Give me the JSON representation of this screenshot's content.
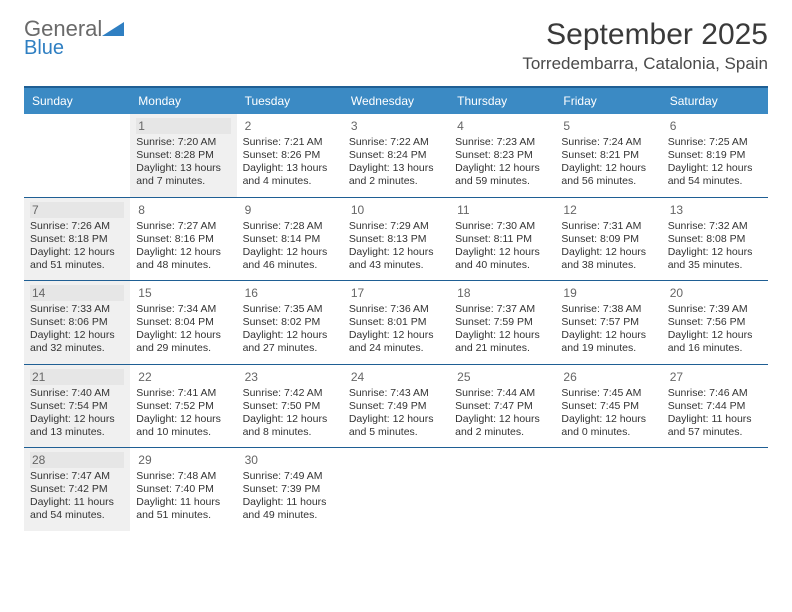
{
  "logo": {
    "word1": "General",
    "word2": "Blue",
    "text_color": "#6a6a6a",
    "accent_color": "#2f7fc2"
  },
  "title": "September 2025",
  "location": "Torredembarra, Catalonia, Spain",
  "header_bar_color": "#3b8ac4",
  "border_color": "#1f5f94",
  "shade_color": "#f0f0f0",
  "background_color": "#ffffff",
  "text_color": "#333333",
  "fonts": {
    "title_pt": 30,
    "location_pt": 17,
    "dayname_pt": 12,
    "daynum_pt": 12,
    "body_pt": 10.5
  },
  "dayNames": [
    "Sunday",
    "Monday",
    "Tuesday",
    "Wednesday",
    "Thursday",
    "Friday",
    "Saturday"
  ],
  "weeks": [
    [
      {
        "day": "",
        "shade": false,
        "sunrise": "",
        "sunset": "",
        "daylight": ""
      },
      {
        "day": "1",
        "shade": true,
        "sunrise": "Sunrise: 7:20 AM",
        "sunset": "Sunset: 8:28 PM",
        "daylight": "Daylight: 13 hours and 7 minutes."
      },
      {
        "day": "2",
        "shade": false,
        "sunrise": "Sunrise: 7:21 AM",
        "sunset": "Sunset: 8:26 PM",
        "daylight": "Daylight: 13 hours and 4 minutes."
      },
      {
        "day": "3",
        "shade": false,
        "sunrise": "Sunrise: 7:22 AM",
        "sunset": "Sunset: 8:24 PM",
        "daylight": "Daylight: 13 hours and 2 minutes."
      },
      {
        "day": "4",
        "shade": false,
        "sunrise": "Sunrise: 7:23 AM",
        "sunset": "Sunset: 8:23 PM",
        "daylight": "Daylight: 12 hours and 59 minutes."
      },
      {
        "day": "5",
        "shade": false,
        "sunrise": "Sunrise: 7:24 AM",
        "sunset": "Sunset: 8:21 PM",
        "daylight": "Daylight: 12 hours and 56 minutes."
      },
      {
        "day": "6",
        "shade": false,
        "sunrise": "Sunrise: 7:25 AM",
        "sunset": "Sunset: 8:19 PM",
        "daylight": "Daylight: 12 hours and 54 minutes."
      }
    ],
    [
      {
        "day": "7",
        "shade": true,
        "sunrise": "Sunrise: 7:26 AM",
        "sunset": "Sunset: 8:18 PM",
        "daylight": "Daylight: 12 hours and 51 minutes."
      },
      {
        "day": "8",
        "shade": false,
        "sunrise": "Sunrise: 7:27 AM",
        "sunset": "Sunset: 8:16 PM",
        "daylight": "Daylight: 12 hours and 48 minutes."
      },
      {
        "day": "9",
        "shade": false,
        "sunrise": "Sunrise: 7:28 AM",
        "sunset": "Sunset: 8:14 PM",
        "daylight": "Daylight: 12 hours and 46 minutes."
      },
      {
        "day": "10",
        "shade": false,
        "sunrise": "Sunrise: 7:29 AM",
        "sunset": "Sunset: 8:13 PM",
        "daylight": "Daylight: 12 hours and 43 minutes."
      },
      {
        "day": "11",
        "shade": false,
        "sunrise": "Sunrise: 7:30 AM",
        "sunset": "Sunset: 8:11 PM",
        "daylight": "Daylight: 12 hours and 40 minutes."
      },
      {
        "day": "12",
        "shade": false,
        "sunrise": "Sunrise: 7:31 AM",
        "sunset": "Sunset: 8:09 PM",
        "daylight": "Daylight: 12 hours and 38 minutes."
      },
      {
        "day": "13",
        "shade": false,
        "sunrise": "Sunrise: 7:32 AM",
        "sunset": "Sunset: 8:08 PM",
        "daylight": "Daylight: 12 hours and 35 minutes."
      }
    ],
    [
      {
        "day": "14",
        "shade": true,
        "sunrise": "Sunrise: 7:33 AM",
        "sunset": "Sunset: 8:06 PM",
        "daylight": "Daylight: 12 hours and 32 minutes."
      },
      {
        "day": "15",
        "shade": false,
        "sunrise": "Sunrise: 7:34 AM",
        "sunset": "Sunset: 8:04 PM",
        "daylight": "Daylight: 12 hours and 29 minutes."
      },
      {
        "day": "16",
        "shade": false,
        "sunrise": "Sunrise: 7:35 AM",
        "sunset": "Sunset: 8:02 PM",
        "daylight": "Daylight: 12 hours and 27 minutes."
      },
      {
        "day": "17",
        "shade": false,
        "sunrise": "Sunrise: 7:36 AM",
        "sunset": "Sunset: 8:01 PM",
        "daylight": "Daylight: 12 hours and 24 minutes."
      },
      {
        "day": "18",
        "shade": false,
        "sunrise": "Sunrise: 7:37 AM",
        "sunset": "Sunset: 7:59 PM",
        "daylight": "Daylight: 12 hours and 21 minutes."
      },
      {
        "day": "19",
        "shade": false,
        "sunrise": "Sunrise: 7:38 AM",
        "sunset": "Sunset: 7:57 PM",
        "daylight": "Daylight: 12 hours and 19 minutes."
      },
      {
        "day": "20",
        "shade": false,
        "sunrise": "Sunrise: 7:39 AM",
        "sunset": "Sunset: 7:56 PM",
        "daylight": "Daylight: 12 hours and 16 minutes."
      }
    ],
    [
      {
        "day": "21",
        "shade": true,
        "sunrise": "Sunrise: 7:40 AM",
        "sunset": "Sunset: 7:54 PM",
        "daylight": "Daylight: 12 hours and 13 minutes."
      },
      {
        "day": "22",
        "shade": false,
        "sunrise": "Sunrise: 7:41 AM",
        "sunset": "Sunset: 7:52 PM",
        "daylight": "Daylight: 12 hours and 10 minutes."
      },
      {
        "day": "23",
        "shade": false,
        "sunrise": "Sunrise: 7:42 AM",
        "sunset": "Sunset: 7:50 PM",
        "daylight": "Daylight: 12 hours and 8 minutes."
      },
      {
        "day": "24",
        "shade": false,
        "sunrise": "Sunrise: 7:43 AM",
        "sunset": "Sunset: 7:49 PM",
        "daylight": "Daylight: 12 hours and 5 minutes."
      },
      {
        "day": "25",
        "shade": false,
        "sunrise": "Sunrise: 7:44 AM",
        "sunset": "Sunset: 7:47 PM",
        "daylight": "Daylight: 12 hours and 2 minutes."
      },
      {
        "day": "26",
        "shade": false,
        "sunrise": "Sunrise: 7:45 AM",
        "sunset": "Sunset: 7:45 PM",
        "daylight": "Daylight: 12 hours and 0 minutes."
      },
      {
        "day": "27",
        "shade": false,
        "sunrise": "Sunrise: 7:46 AM",
        "sunset": "Sunset: 7:44 PM",
        "daylight": "Daylight: 11 hours and 57 minutes."
      }
    ],
    [
      {
        "day": "28",
        "shade": true,
        "sunrise": "Sunrise: 7:47 AM",
        "sunset": "Sunset: 7:42 PM",
        "daylight": "Daylight: 11 hours and 54 minutes."
      },
      {
        "day": "29",
        "shade": false,
        "sunrise": "Sunrise: 7:48 AM",
        "sunset": "Sunset: 7:40 PM",
        "daylight": "Daylight: 11 hours and 51 minutes."
      },
      {
        "day": "30",
        "shade": false,
        "sunrise": "Sunrise: 7:49 AM",
        "sunset": "Sunset: 7:39 PM",
        "daylight": "Daylight: 11 hours and 49 minutes."
      },
      {
        "day": "",
        "shade": false,
        "sunrise": "",
        "sunset": "",
        "daylight": ""
      },
      {
        "day": "",
        "shade": false,
        "sunrise": "",
        "sunset": "",
        "daylight": ""
      },
      {
        "day": "",
        "shade": false,
        "sunrise": "",
        "sunset": "",
        "daylight": ""
      },
      {
        "day": "",
        "shade": false,
        "sunrise": "",
        "sunset": "",
        "daylight": ""
      }
    ]
  ]
}
